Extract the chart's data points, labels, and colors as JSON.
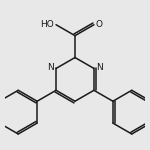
{
  "bg_color": "#e8e8e8",
  "line_color": "#1a1a1a",
  "line_width": 1.1,
  "font_size": 6.5,
  "font_color": "#1a1a1a",
  "figsize": [
    1.5,
    1.5
  ],
  "dpi": 100,
  "cooh_label_ho": "HO",
  "cooh_label_o": "O",
  "n_label": "N"
}
